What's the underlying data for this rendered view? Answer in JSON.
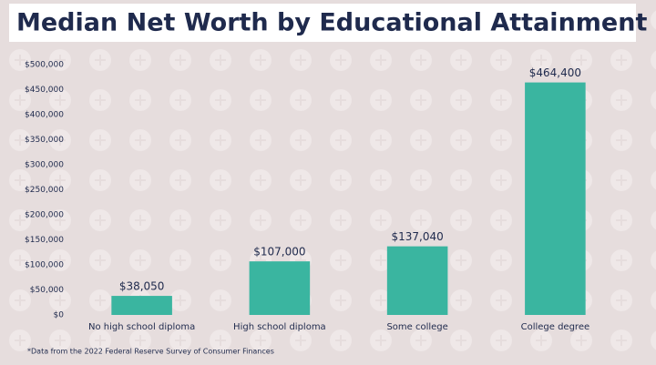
{
  "chart_data": {
    "type": "bar",
    "title": "Median Net Worth by Educational Attainment",
    "categories": [
      "No high school diploma",
      "High school diploma",
      "Some college",
      "College degree"
    ],
    "values": [
      38050,
      107000,
      137040,
      464400
    ],
    "value_labels": [
      "$38,050",
      "$107,000",
      "$137,040",
      "$464,400"
    ],
    "color": "#3ab5a0",
    "ylim": [
      0,
      500000
    ],
    "yticks": [
      {
        "value": 0,
        "label": "$0"
      },
      {
        "value": 50000,
        "label": "$50,000"
      },
      {
        "value": 100000,
        "label": "$100,000"
      },
      {
        "value": 150000,
        "label": "$150,000"
      },
      {
        "value": 200000,
        "label": "$200,000"
      },
      {
        "value": 250000,
        "label": "$250,000"
      },
      {
        "value": 300000,
        "label": "$300,000"
      },
      {
        "value": 350000,
        "label": "$350,000"
      },
      {
        "value": 400000,
        "label": "$400,000"
      },
      {
        "value": 450000,
        "label": "$450,000"
      },
      {
        "value": 500000,
        "label": "$500,000"
      }
    ],
    "grid": false,
    "note": "*Data from the 2022 Federal Reserve Survey of Consumer Finances"
  }
}
